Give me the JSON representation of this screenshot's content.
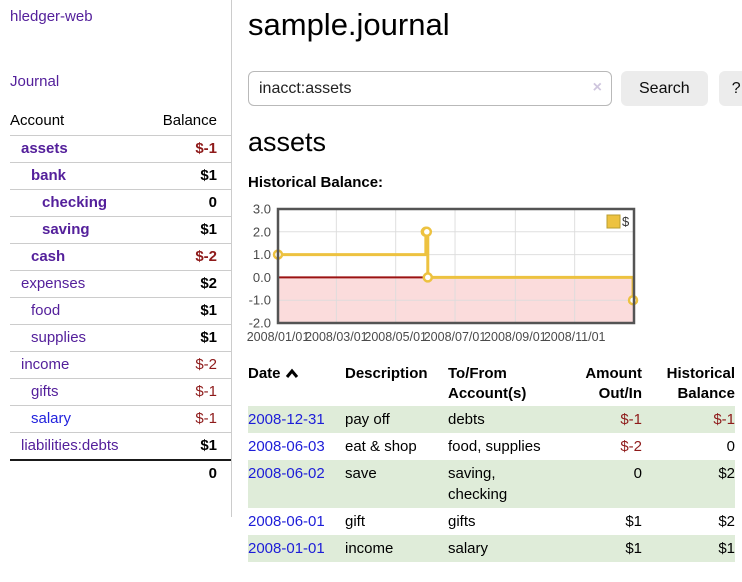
{
  "app": {
    "brand": "hledger-web",
    "nav_journal": "Journal"
  },
  "sidebar": {
    "header": {
      "account": "Account",
      "balance": "Balance"
    },
    "accounts": [
      {
        "name": "assets",
        "level": 1,
        "balance": "$-1",
        "bold": true,
        "negative": true,
        "amount_bold": true
      },
      {
        "name": "bank",
        "level": 2,
        "balance": "$1",
        "bold": true,
        "negative": false,
        "amount_bold": true
      },
      {
        "name": "checking",
        "level": 3,
        "balance": "0",
        "bold": true,
        "negative": false,
        "amount_bold": true
      },
      {
        "name": "saving",
        "level": 3,
        "balance": "$1",
        "bold": true,
        "negative": false,
        "amount_bold": true
      },
      {
        "name": "cash",
        "level": 2,
        "balance": "$-2",
        "bold": true,
        "negative": true,
        "amount_bold": true
      },
      {
        "name": "expenses",
        "level": 1,
        "balance": "$2",
        "bold": false,
        "negative": false,
        "amount_bold": true
      },
      {
        "name": "food",
        "level": 2,
        "balance": "$1",
        "bold": false,
        "negative": false,
        "amount_bold": true
      },
      {
        "name": "supplies",
        "level": 2,
        "balance": "$1",
        "bold": false,
        "negative": false,
        "amount_bold": true
      },
      {
        "name": "income",
        "level": 1,
        "balance": "$-2",
        "bold": false,
        "negative": true,
        "amount_bold": false
      },
      {
        "name": "gifts",
        "level": 2,
        "balance": "$-1",
        "bold": false,
        "negative": true,
        "amount_bold": false
      },
      {
        "name": "salary",
        "level": 2,
        "balance": "$-1",
        "bold": false,
        "negative": true,
        "amount_bold": false,
        "unvisited": true
      },
      {
        "name": "liabilities:debts",
        "level": 1,
        "balance": "$1",
        "bold": false,
        "negative": false,
        "amount_bold": true
      }
    ],
    "total": "0"
  },
  "header": {
    "title": "sample.journal"
  },
  "search": {
    "value": "inacct:assets",
    "clear_icon": "×",
    "button": "Search",
    "help_button": "?"
  },
  "account_page": {
    "heading": "assets",
    "chart_label": "Historical Balance:"
  },
  "chart_data": {
    "type": "line",
    "steps": true,
    "series": [
      {
        "name": "$",
        "color": "#edc240",
        "x": [
          "2008-01-01",
          "2008-06-01",
          "2008-06-02",
          "2008-06-03",
          "2008-12-31"
        ],
        "y": [
          1,
          2,
          2,
          0,
          -1
        ]
      }
    ],
    "xlim": [
      "2008-01-01",
      "2009-01-01"
    ],
    "ylim": [
      -2,
      3
    ],
    "ytick_labels": [
      "3.0",
      "2.0",
      "1.0",
      "0.0",
      "-1.0",
      "-2.0"
    ],
    "xticks": [
      "2008-01-01",
      "2008-03-01",
      "2008-05-01",
      "2008-07-01",
      "2008-09-01",
      "2008-11-01"
    ],
    "xtick_labels": [
      "2008/01/01",
      "2008/03/01",
      "2008/05/01",
      "2008/07/01",
      "2008/09/01",
      "2008/11/01"
    ],
    "legend": "$",
    "legend_position": "top-right",
    "grid": true,
    "colors": {
      "grid": "#dcdcdc",
      "border": "#545454",
      "negative_region": "#fbdcdc",
      "zero_line": "#9b1212",
      "marker_fill": "#ffffff",
      "tick_text": "#4a4a4a"
    }
  },
  "register": {
    "columns": {
      "date": "Date",
      "description": "Description",
      "accounts": "To/From Account(s)",
      "amount": "Amount Out/In",
      "balance": "Historical Balance"
    },
    "rows": [
      {
        "date": "2008-12-31",
        "description": "pay off",
        "accounts": "debts",
        "amount": "$-1",
        "amount_negative": true,
        "balance": "$-1",
        "balance_negative": true,
        "shaded": true
      },
      {
        "date": "2008-06-03",
        "description": "eat & shop",
        "accounts": "food, supplies",
        "amount": "$-2",
        "amount_negative": true,
        "balance": "0",
        "balance_negative": false,
        "shaded": false
      },
      {
        "date": "2008-06-02",
        "description": "save",
        "accounts": "saving, checking",
        "amount": "0",
        "amount_negative": false,
        "balance": "$2",
        "balance_negative": false,
        "shaded": true
      },
      {
        "date": "2008-06-01",
        "description": "gift",
        "accounts": "gifts",
        "amount": "$1",
        "amount_negative": false,
        "balance": "$2",
        "balance_negative": false,
        "shaded": false
      },
      {
        "date": "2008-01-01",
        "description": "income",
        "accounts": "salary",
        "amount": "$1",
        "amount_negative": false,
        "balance": "$1",
        "balance_negative": false,
        "shaded": true
      }
    ]
  },
  "colors": {
    "link_purple": "#54209b",
    "link_blue": "#1d1dd8",
    "negative_red": "#8e1a1a",
    "row_green": "#dfecd9",
    "accent_gold": "#edc240"
  }
}
